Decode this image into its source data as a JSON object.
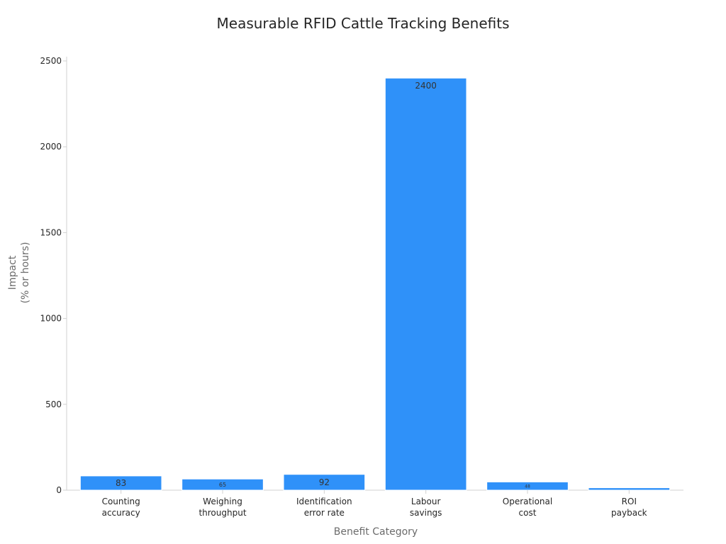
{
  "chart_data": {
    "type": "bar",
    "title": "Measurable RFID Cattle Tracking Benefits",
    "xlabel": "Benefit Category",
    "ylabel": [
      "Impact",
      "(% or hours)"
    ],
    "categories": [
      [
        "Counting",
        "accuracy"
      ],
      [
        "Weighing",
        "throughput"
      ],
      [
        "Identification",
        "error rate"
      ],
      [
        "Labour",
        "savings"
      ],
      [
        "Operational",
        "cost"
      ],
      [
        "ROI",
        "payback"
      ]
    ],
    "values": [
      83,
      65,
      92,
      2400,
      48,
      14
    ],
    "data_labels": [
      "83",
      "65",
      "92",
      "2400",
      "48",
      ""
    ],
    "ylim": [
      0,
      2500
    ],
    "yticks": [
      0,
      500,
      1000,
      1500,
      2000,
      2500
    ],
    "bar_color": "#2f91f9",
    "grid": false
  }
}
